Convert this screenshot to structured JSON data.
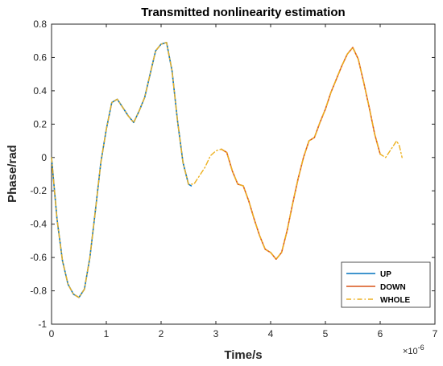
{
  "chart_data": {
    "type": "line",
    "title": "Transmitted nonlinearity estimation",
    "xlabel": "Time/s",
    "ylabel": "Phase/rad",
    "x_exponent_label": "×10",
    "x_exponent_power": "-6",
    "xlim": [
      0,
      7
    ],
    "ylim": [
      -1,
      0.8
    ],
    "xticks": [
      0,
      1,
      2,
      3,
      4,
      5,
      6,
      7
    ],
    "xtick_labels": [
      "0",
      "1",
      "2",
      "3",
      "4",
      "5",
      "6",
      "7"
    ],
    "yticks": [
      -1,
      -0.8,
      -0.6,
      -0.4,
      -0.2,
      0,
      0.2,
      0.4,
      0.6,
      0.8
    ],
    "ytick_labels": [
      "-1",
      "-0.8",
      "-0.6",
      "-0.4",
      "-0.2",
      "0",
      "0.2",
      "0.4",
      "0.6",
      "0.8"
    ],
    "grid": false,
    "legend_position": "bottom-right",
    "series": [
      {
        "name": "UP",
        "color": "#0072BD",
        "style": "solid",
        "x": [
          0,
          0.1,
          0.2,
          0.3,
          0.4,
          0.5,
          0.6,
          0.7,
          0.8,
          0.9,
          1.0,
          1.1,
          1.2,
          1.3,
          1.4,
          1.5,
          1.6,
          1.7,
          1.8,
          1.9,
          2.0,
          2.1,
          2.2,
          2.3,
          2.4,
          2.5,
          2.55
        ],
        "y": [
          0,
          -0.37,
          -0.62,
          -0.76,
          -0.82,
          -0.84,
          -0.79,
          -0.6,
          -0.32,
          -0.03,
          0.17,
          0.33,
          0.35,
          0.3,
          0.25,
          0.21,
          0.28,
          0.36,
          0.5,
          0.64,
          0.68,
          0.69,
          0.52,
          0.22,
          -0.03,
          -0.16,
          -0.17
        ]
      },
      {
        "name": "DOWN",
        "color": "#D95319",
        "style": "solid",
        "x": [
          3.1,
          3.2,
          3.3,
          3.4,
          3.5,
          3.6,
          3.7,
          3.8,
          3.9,
          4.0,
          4.1,
          4.2,
          4.3,
          4.4,
          4.5,
          4.6,
          4.7,
          4.8,
          4.9,
          5.0,
          5.1,
          5.2,
          5.3,
          5.4,
          5.5,
          5.6,
          5.7,
          5.8,
          5.9,
          6.0
        ],
        "y": [
          0.05,
          0.03,
          -0.08,
          -0.16,
          -0.17,
          -0.26,
          -0.37,
          -0.47,
          -0.55,
          -0.57,
          -0.61,
          -0.57,
          -0.44,
          -0.28,
          -0.13,
          0.0,
          0.1,
          0.12,
          0.21,
          0.29,
          0.39,
          0.47,
          0.55,
          0.62,
          0.66,
          0.59,
          0.45,
          0.3,
          0.14,
          0.02
        ]
      },
      {
        "name": "WHOLE",
        "color": "#EDB120",
        "style": "dashdot",
        "x": [
          0,
          0.1,
          0.2,
          0.3,
          0.4,
          0.5,
          0.6,
          0.7,
          0.8,
          0.9,
          1.0,
          1.1,
          1.2,
          1.3,
          1.4,
          1.5,
          1.6,
          1.7,
          1.8,
          1.9,
          2.0,
          2.1,
          2.2,
          2.3,
          2.4,
          2.5,
          2.6,
          2.7,
          2.8,
          2.9,
          3.0,
          3.1,
          3.2,
          3.3,
          3.4,
          3.5,
          3.6,
          3.7,
          3.8,
          3.9,
          4.0,
          4.1,
          4.2,
          4.3,
          4.4,
          4.5,
          4.6,
          4.7,
          4.8,
          4.9,
          5.0,
          5.1,
          5.2,
          5.3,
          5.4,
          5.5,
          5.6,
          5.7,
          5.8,
          5.9,
          6.0,
          6.1,
          6.2,
          6.3,
          6.35,
          6.4
        ],
        "y": [
          0,
          -0.37,
          -0.62,
          -0.76,
          -0.82,
          -0.84,
          -0.79,
          -0.6,
          -0.32,
          -0.03,
          0.17,
          0.33,
          0.35,
          0.3,
          0.25,
          0.21,
          0.28,
          0.36,
          0.5,
          0.64,
          0.68,
          0.69,
          0.52,
          0.22,
          -0.03,
          -0.16,
          -0.16,
          -0.11,
          -0.06,
          0.01,
          0.04,
          0.05,
          0.03,
          -0.08,
          -0.16,
          -0.17,
          -0.26,
          -0.37,
          -0.47,
          -0.55,
          -0.57,
          -0.61,
          -0.57,
          -0.44,
          -0.28,
          -0.13,
          0.0,
          0.1,
          0.12,
          0.21,
          0.29,
          0.39,
          0.47,
          0.55,
          0.62,
          0.66,
          0.59,
          0.45,
          0.3,
          0.14,
          0.02,
          0.0,
          0.05,
          0.1,
          0.07,
          0.0
        ]
      }
    ]
  }
}
